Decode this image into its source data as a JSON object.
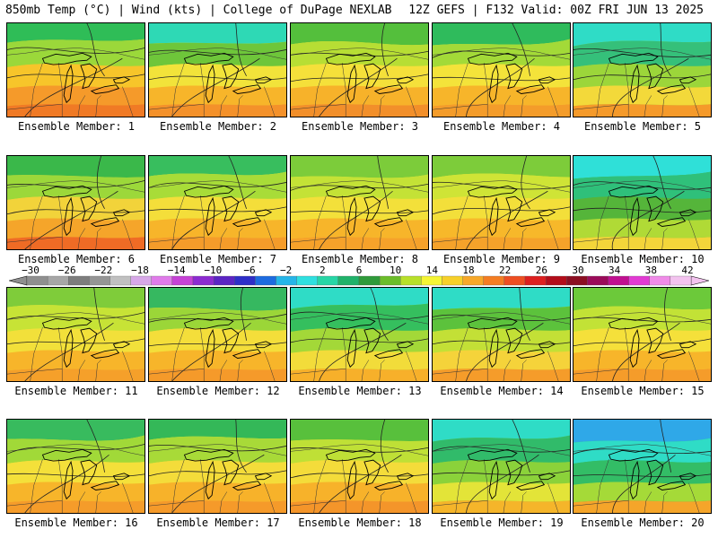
{
  "header": {
    "left": "850mb Temp (°C) | Wind (kts) | College of DuPage NEXLAB",
    "right": "12Z GEFS | F132 Valid: 00Z FRI JUN 13 2025"
  },
  "colorbar": {
    "ticks": [
      "−30",
      "−26",
      "−22",
      "−18",
      "−14",
      "−10",
      "−6",
      "−2",
      "2",
      "6",
      "10",
      "14",
      "18",
      "22",
      "26",
      "30",
      "34",
      "38",
      "42"
    ],
    "colors": [
      "#8f8f8f",
      "#a6a6a6",
      "#7d7d7d",
      "#959595",
      "#c0c0c0",
      "#d7a8e8",
      "#e07bea",
      "#c642d6",
      "#8c2bd1",
      "#5b24c4",
      "#2e2ec8",
      "#1d6be0",
      "#25b5e8",
      "#2fe0e0",
      "#27d6a6",
      "#20b26a",
      "#2f9a3a",
      "#6bbd2a",
      "#b8e02a",
      "#f5f534",
      "#f7d02a",
      "#f7a82a",
      "#f47d23",
      "#ee4e22",
      "#dd1f1f",
      "#b30d1a",
      "#8c0e22",
      "#9b0b5a",
      "#c01090",
      "#e23ad3",
      "#f08be8",
      "#f3c3ef"
    ]
  },
  "panels": [
    {
      "label": "Ensemble Member: 1",
      "colors": [
        "#2fbd57",
        "#9bd83a",
        "#f7c52a",
        "#f59a2a",
        "#f07a25"
      ]
    },
    {
      "label": "Ensemble Member: 2",
      "colors": [
        "#2ed9b5",
        "#6ec63a",
        "#f2e33a",
        "#f7b52a",
        "#f4912a"
      ]
    },
    {
      "label": "Ensemble Member: 3",
      "colors": [
        "#54bf3c",
        "#b7de34",
        "#f5e03a",
        "#f7b22a",
        "#f28f2a"
      ]
    },
    {
      "label": "Ensemble Member: 4",
      "colors": [
        "#2fbb5c",
        "#a3da38",
        "#f4e33a",
        "#f7b52a",
        "#f49c2a"
      ]
    },
    {
      "label": "Ensemble Member: 5",
      "colors": [
        "#2fdcc6",
        "#35c07a",
        "#9cd63a",
        "#f3d93a",
        "#f59a2a"
      ]
    },
    {
      "label": "Ensemble Member: 6",
      "colors": [
        "#3ab84a",
        "#9cd83a",
        "#f2d33a",
        "#f5a52a",
        "#ef6b25"
      ]
    },
    {
      "label": "Ensemble Member: 7",
      "colors": [
        "#38be5e",
        "#a8dc38",
        "#f4de3a",
        "#f7b52a",
        "#f59c2a"
      ]
    },
    {
      "label": "Ensemble Member: 8",
      "colors": [
        "#7ccc3a",
        "#c4e236",
        "#f3e03a",
        "#f7b52a",
        "#f6a22a"
      ]
    },
    {
      "label": "Ensemble Member: 9",
      "colors": [
        "#7dcc3a",
        "#cfe436",
        "#f3df3a",
        "#f7b82a",
        "#f5a22a"
      ]
    },
    {
      "label": "Ensemble Member: 10",
      "colors": [
        "#2fe0d8",
        "#2fc07a",
        "#55b53a",
        "#b0da36",
        "#f3d53a"
      ]
    },
    {
      "label": "Ensemble Member: 11",
      "colors": [
        "#7fcc3a",
        "#c7e336",
        "#f2e03a",
        "#f7b52a",
        "#f5a02a"
      ]
    },
    {
      "label": "Ensemble Member: 12",
      "colors": [
        "#36b860",
        "#9bd638",
        "#f4de3a",
        "#f7b52a",
        "#f59a2a"
      ]
    },
    {
      "label": "Ensemble Member: 13",
      "colors": [
        "#2fdcc6",
        "#35bf5e",
        "#a3d838",
        "#f2dc3a",
        "#f7b02a"
      ]
    },
    {
      "label": "Ensemble Member: 14",
      "colors": [
        "#2fdcc6",
        "#5cc23c",
        "#c3e036",
        "#f5d33a",
        "#f59c2a"
      ]
    },
    {
      "label": "Ensemble Member: 15",
      "colors": [
        "#6cc93a",
        "#c2e236",
        "#f5e03a",
        "#f7b52a",
        "#f59c2a"
      ]
    },
    {
      "label": "Ensemble Member: 16",
      "colors": [
        "#38bb5e",
        "#a1d938",
        "#f4e03a",
        "#f7b52a",
        "#f59c2a"
      ]
    },
    {
      "label": "Ensemble Member: 17",
      "colors": [
        "#34b858",
        "#a8da38",
        "#f4dc3a",
        "#f7b22a",
        "#f59a2a"
      ]
    },
    {
      "label": "Ensemble Member: 18",
      "colors": [
        "#58c03c",
        "#bfe036",
        "#f4dc3a",
        "#f7b22a",
        "#f4952a"
      ]
    },
    {
      "label": "Ensemble Member: 19",
      "colors": [
        "#2fdcc6",
        "#31bb6a",
        "#8bd23a",
        "#e3e438",
        "#f5b52a"
      ]
    },
    {
      "label": "Ensemble Member: 20",
      "colors": [
        "#2fa8e8",
        "#2fdcc6",
        "#33bd66",
        "#a5da38",
        "#f5a52a"
      ]
    }
  ]
}
